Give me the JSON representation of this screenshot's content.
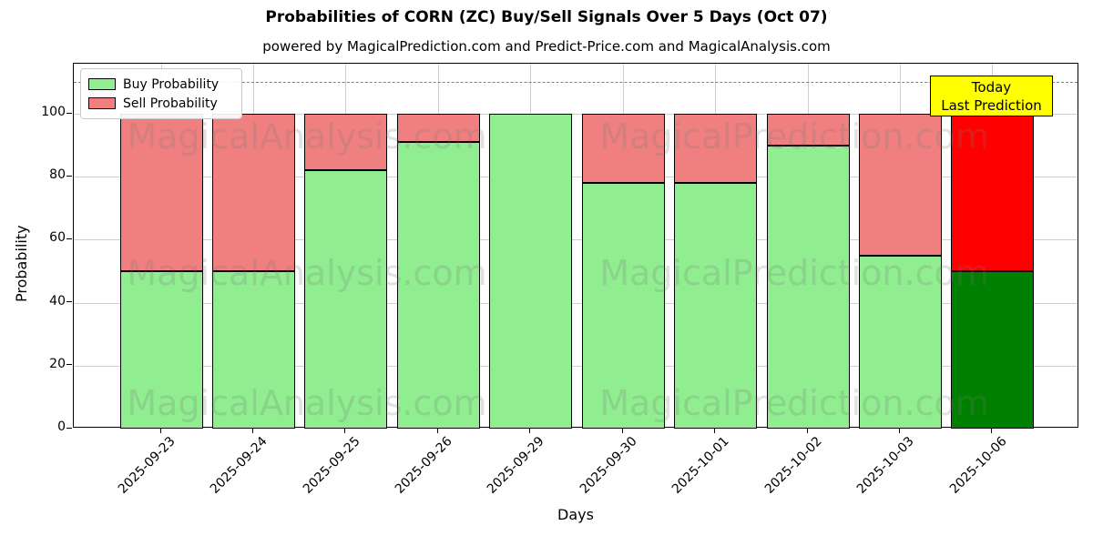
{
  "header": {
    "title": "Probabilities of CORN (ZC) Buy/Sell Signals Over 5 Days (Oct 07)",
    "subtitle": "powered by MagicalPrediction.com and Predict-Price.com and MagicalAnalysis.com"
  },
  "chart_data": {
    "type": "bar",
    "stacked": true,
    "title": "Probabilities of CORN (ZC) Buy/Sell Signals Over 5 Days (Oct 07)",
    "xlabel": "Days",
    "ylabel": "Probability",
    "ylim": [
      0,
      116
    ],
    "yticks": [
      0,
      20,
      40,
      60,
      80,
      100
    ],
    "grid": true,
    "dashed_line_y": 110,
    "legend_position": "upper left",
    "categories": [
      "2025-09-23",
      "2025-09-24",
      "2025-09-25",
      "2025-09-26",
      "2025-09-29",
      "2025-09-30",
      "2025-10-01",
      "2025-10-02",
      "2025-10-03",
      "2025-10-06"
    ],
    "series": [
      {
        "name": "Buy Probability",
        "color": "#90ee90",
        "values": [
          50,
          50,
          82,
          91,
          100,
          78,
          78,
          90,
          55,
          50
        ]
      },
      {
        "name": "Sell Probability",
        "color": "#f08080",
        "values": [
          50,
          50,
          18,
          9,
          0,
          22,
          22,
          10,
          45,
          50
        ]
      }
    ],
    "today_highlight": {
      "index": 9,
      "buy_color": "#008000",
      "sell_color": "#ff0000"
    },
    "annotation": {
      "line1": "Today",
      "line2": "Last Prediction",
      "bg_color": "#ffff00"
    }
  },
  "watermarks": {
    "left_text": "MagicalAnalysis.com",
    "right_text": "MagicalPrediction.com",
    "color": "#787878"
  }
}
